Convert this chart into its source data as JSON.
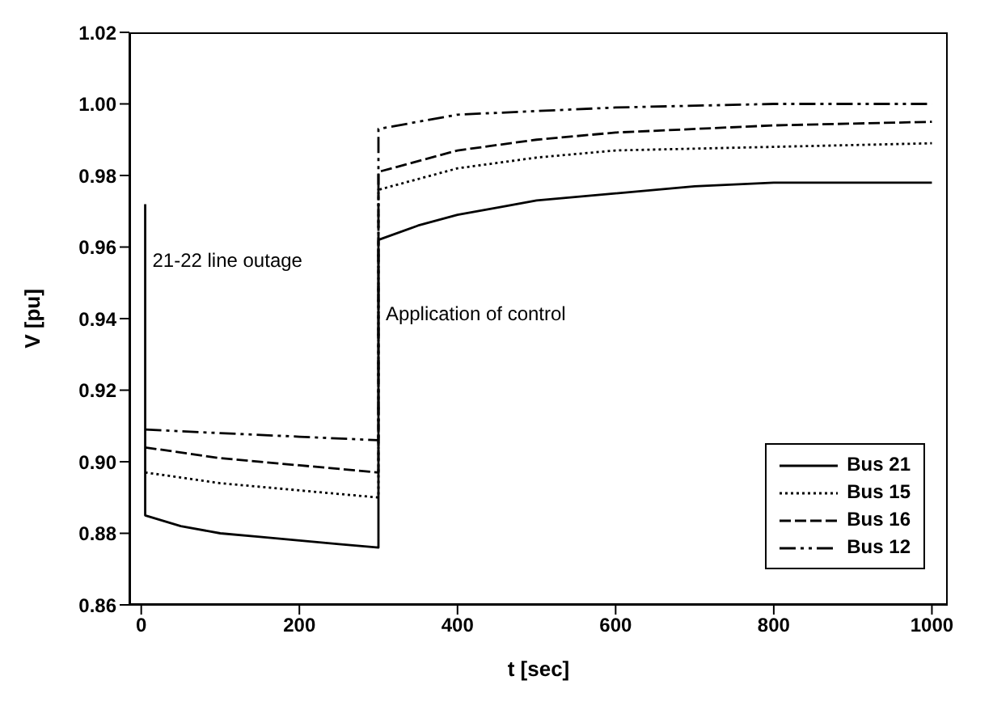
{
  "chart_data": {
    "type": "line",
    "xlabel": "t [sec]",
    "ylabel": "V [pu]",
    "xlim": [
      -15,
      1020
    ],
    "xticks": [
      0,
      200,
      400,
      600,
      800,
      1000
    ],
    "ylim": [
      0.86,
      1.02
    ],
    "yticks": [
      {
        "value": 0.86,
        "label": "0.86"
      },
      {
        "value": 0.88,
        "label": "0.88"
      },
      {
        "value": 0.9,
        "label": "0.90"
      },
      {
        "value": 0.92,
        "label": "0.92"
      },
      {
        "value": 0.94,
        "label": "0.94"
      },
      {
        "value": 0.96,
        "label": "0.96"
      },
      {
        "value": 0.98,
        "label": "0.98"
      },
      {
        "value": 1.0,
        "label": "1.00"
      },
      {
        "value": 1.02,
        "label": "1.02"
      }
    ],
    "grid": false,
    "legend": "bottom right",
    "marker": "none",
    "annotations": [
      {
        "text": "21-22 line outage",
        "x": 10,
        "y": 0.956
      },
      {
        "text": "Application of control",
        "x": 305,
        "y": 0.941
      }
    ],
    "series": [
      {
        "name": "Bus 21",
        "color": "#000000",
        "line_style": "solid",
        "x": [
          5,
          5,
          50,
          100,
          150,
          200,
          250,
          300,
          300,
          350,
          400,
          500,
          600,
          700,
          800,
          900,
          1000
        ],
        "values": [
          0.972,
          0.885,
          0.882,
          0.88,
          0.879,
          0.878,
          0.877,
          0.876,
          0.962,
          0.966,
          0.969,
          0.973,
          0.975,
          0.977,
          0.978,
          0.978,
          0.978
        ]
      },
      {
        "name": "Bus 15",
        "color": "#000000",
        "line_style": "dotted",
        "x": [
          5,
          100,
          200,
          300,
          300,
          400,
          500,
          600,
          800,
          1000
        ],
        "values": [
          0.897,
          0.894,
          0.892,
          0.89,
          0.976,
          0.982,
          0.985,
          0.987,
          0.988,
          0.989
        ]
      },
      {
        "name": "Bus 16",
        "color": "#000000",
        "line_style": "dashed",
        "x": [
          5,
          100,
          200,
          300,
          300,
          400,
          500,
          600,
          800,
          1000
        ],
        "values": [
          0.904,
          0.901,
          0.899,
          0.897,
          0.981,
          0.987,
          0.99,
          0.992,
          0.994,
          0.995
        ]
      },
      {
        "name": "Bus 12",
        "color": "#000000",
        "line_style": "dashdot",
        "x": [
          5,
          100,
          200,
          300,
          300,
          400,
          500,
          600,
          800,
          1000
        ],
        "values": [
          0.909,
          0.908,
          0.907,
          0.906,
          0.993,
          0.997,
          0.998,
          0.999,
          1.0,
          1.0
        ]
      }
    ]
  }
}
